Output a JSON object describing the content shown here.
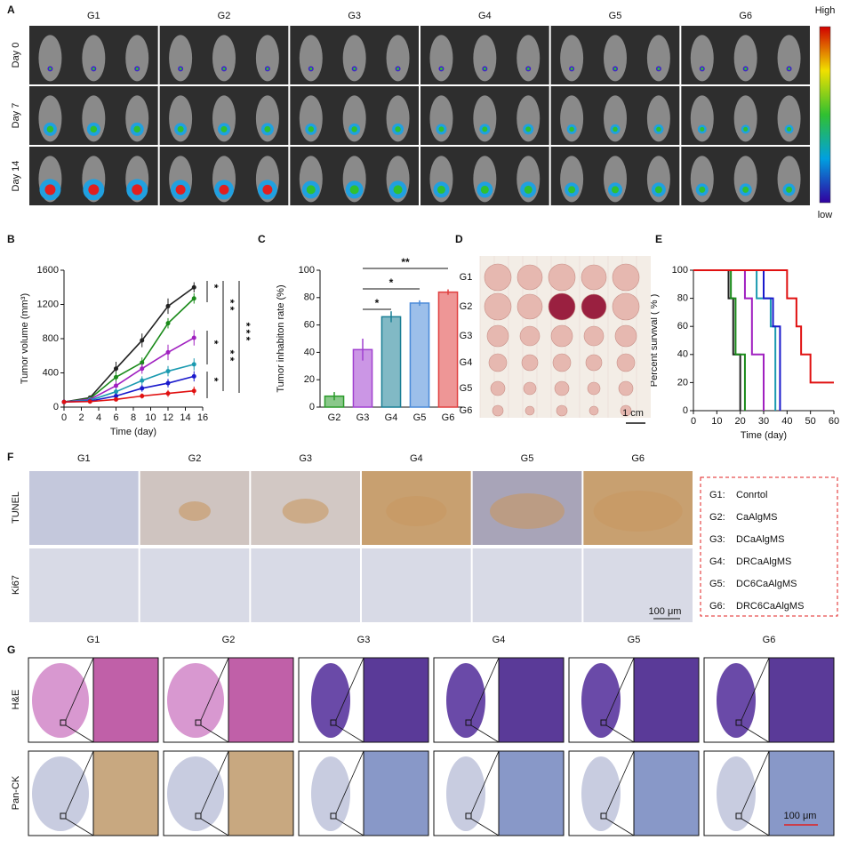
{
  "panel_a": {
    "label": "A",
    "columns": [
      "G1",
      "G2",
      "G3",
      "G4",
      "G5",
      "G6"
    ],
    "rows": [
      "Day 0",
      "Day 7",
      "Day 14"
    ],
    "scale_high": "High",
    "scale_low": "low"
  },
  "chart_data": [
    {
      "type": "line",
      "label": "B",
      "xlabel": "Time (day)",
      "ylabel": "Tumor volume (mm³)",
      "x": [
        0,
        3,
        6,
        9,
        12,
        15
      ],
      "xlim": [
        0,
        16
      ],
      "xticks": [
        0,
        2,
        4,
        6,
        8,
        10,
        12,
        14,
        16
      ],
      "ylim": [
        0,
        1600
      ],
      "yticks": [
        0,
        400,
        800,
        1200,
        1600
      ],
      "series": [
        {
          "color": "#222222",
          "values": [
            60,
            110,
            450,
            780,
            1180,
            1400
          ],
          "errors": [
            10,
            25,
            80,
            80,
            90,
            60
          ]
        },
        {
          "color": "#1a8a1a",
          "values": [
            60,
            100,
            350,
            520,
            980,
            1270
          ],
          "errors": [
            10,
            20,
            60,
            60,
            60,
            60
          ]
        },
        {
          "color": "#a020c0",
          "values": [
            60,
            90,
            250,
            450,
            640,
            810
          ],
          "errors": [
            10,
            20,
            50,
            60,
            90,
            90
          ]
        },
        {
          "color": "#1a9ab0",
          "values": [
            60,
            80,
            180,
            310,
            420,
            500
          ],
          "errors": [
            10,
            15,
            40,
            50,
            60,
            70
          ]
        },
        {
          "color": "#1a1acc",
          "values": [
            60,
            70,
            130,
            220,
            280,
            360
          ],
          "errors": [
            10,
            15,
            30,
            40,
            50,
            60
          ]
        },
        {
          "color": "#e01010",
          "values": [
            60,
            65,
            90,
            130,
            160,
            190
          ],
          "errors": [
            10,
            10,
            20,
            30,
            40,
            50
          ]
        }
      ],
      "annotations": [
        "*",
        "* *",
        "* * *",
        "*",
        "* *",
        "*"
      ]
    },
    {
      "type": "bar",
      "label": "C",
      "ylabel": "Tumor inhabiton rate (%)",
      "categories": [
        "G2",
        "G3",
        "G4",
        "G5",
        "G6"
      ],
      "values": [
        8,
        42,
        66,
        76,
        84
      ],
      "errors": [
        3,
        8,
        4,
        2,
        2
      ],
      "colors": [
        "#2a9a2a",
        "#a040d0",
        "#1a7f95",
        "#4a8ad8",
        "#e04040"
      ],
      "ylim": [
        0,
        100
      ],
      "yticks": [
        0,
        20,
        40,
        60,
        80,
        100
      ],
      "annotations": [
        "*",
        "*",
        "**"
      ]
    },
    {
      "type": "step",
      "label": "E",
      "xlabel": "Time (day)",
      "ylabel": "Percent survival ( % )",
      "xlim": [
        0,
        60
      ],
      "xticks": [
        0,
        10,
        20,
        30,
        40,
        50,
        60
      ],
      "ylim": [
        0,
        100
      ],
      "yticks": [
        0,
        20,
        40,
        60,
        80,
        100
      ],
      "series": [
        {
          "color": "#222222",
          "x": [
            0,
            15,
            17,
            20
          ],
          "values": [
            100,
            80,
            40,
            0
          ]
        },
        {
          "color": "#1a8a1a",
          "x": [
            0,
            16,
            18,
            22
          ],
          "values": [
            100,
            80,
            40,
            0
          ]
        },
        {
          "color": "#a020c0",
          "x": [
            0,
            22,
            25,
            30
          ],
          "values": [
            100,
            80,
            40,
            0
          ]
        },
        {
          "color": "#1a9ab0",
          "x": [
            0,
            27,
            33,
            35
          ],
          "values": [
            100,
            80,
            60,
            0
          ]
        },
        {
          "color": "#1a1acc",
          "x": [
            0,
            30,
            34,
            37
          ],
          "values": [
            100,
            80,
            60,
            0
          ]
        },
        {
          "color": "#e01010",
          "x": [
            0,
            40,
            44,
            46,
            50,
            60
          ],
          "values": [
            100,
            80,
            60,
            40,
            20,
            20
          ]
        }
      ]
    }
  ],
  "panel_d": {
    "label": "D",
    "rows": [
      "G1",
      "G2",
      "G3",
      "G4",
      "G5",
      "G6"
    ],
    "scale_bar": "1 cm"
  },
  "panel_f": {
    "label": "F",
    "columns": [
      "G1",
      "G2",
      "G3",
      "G4",
      "G5",
      "G6"
    ],
    "rows": [
      "TUNEL",
      "Ki67"
    ],
    "scale_bar": "100 μm",
    "legend": [
      {
        "group": "G1:",
        "name": "Conrtol",
        "color": "#000000"
      },
      {
        "group": "G2:",
        "name": "CaAlgMS",
        "color": "#1a8a1a"
      },
      {
        "group": "G3:",
        "name": "DCaAlgMS",
        "color": "#a020c0"
      },
      {
        "group": "G4:",
        "name": "DRCaAlgMS",
        "color": "#1a9ab0"
      },
      {
        "group": "G5:",
        "name": "DC6CaAlgMS",
        "color": "#1a1acc"
      },
      {
        "group": "G6:",
        "name": "DRC6CaAlgMS",
        "color": "#e01010"
      }
    ]
  },
  "panel_g": {
    "label": "G",
    "columns": [
      "G1",
      "G2",
      "G3",
      "G4",
      "G5",
      "G6"
    ],
    "rows": [
      "H&E",
      "Pan-CK"
    ],
    "scale_bar": "100 μm"
  }
}
